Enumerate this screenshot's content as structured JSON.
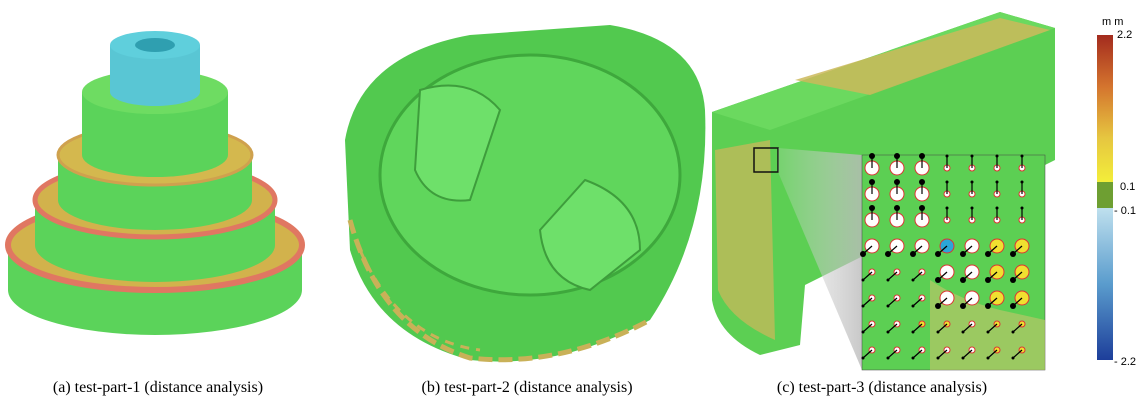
{
  "figure": {
    "panels": [
      {
        "caption": "(a) test-part-1 (distance analysis)"
      },
      {
        "caption": "(b) test-part-2 (distance analysis)"
      },
      {
        "caption": "(c) test-part-3 (distance analysis)"
      }
    ],
    "colorbar": {
      "unit": "m m",
      "labels": [
        "2.2",
        "0.1",
        "- 0.1",
        "- 2.2"
      ]
    }
  }
}
